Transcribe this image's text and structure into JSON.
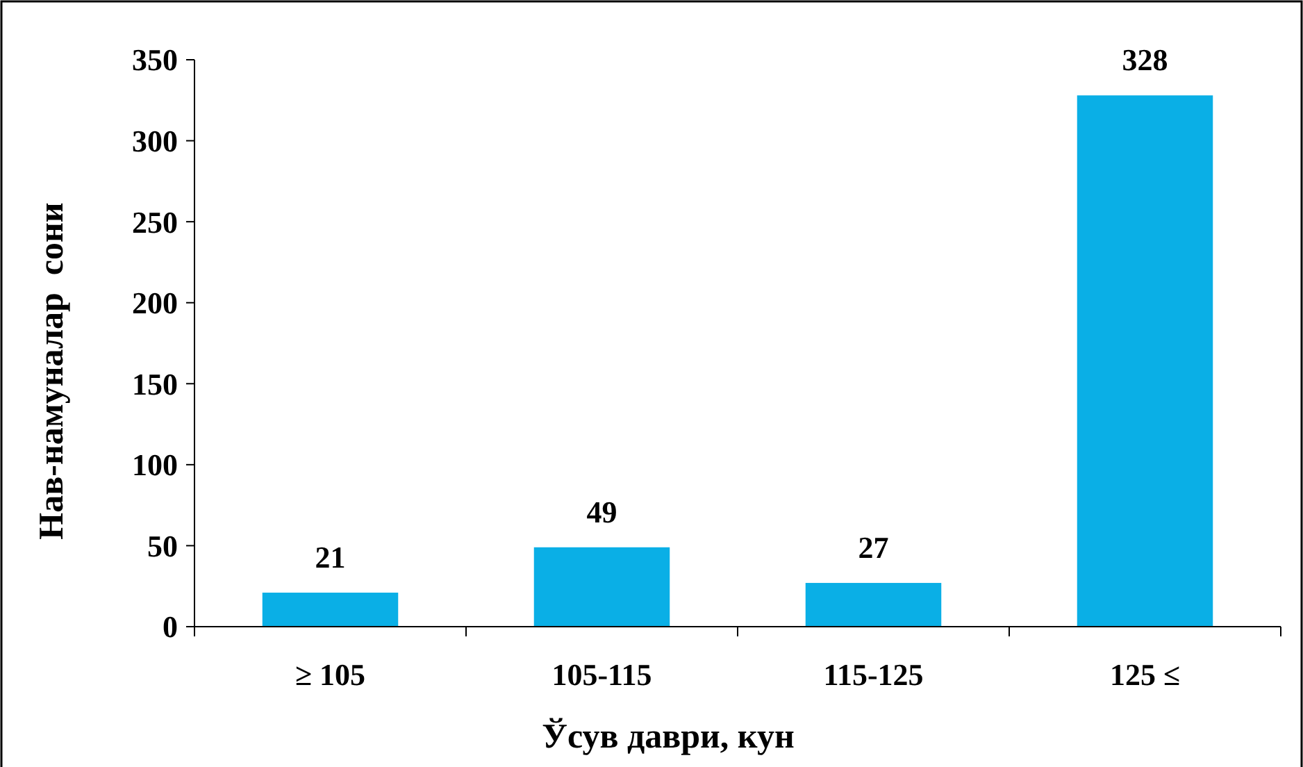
{
  "chart_data": {
    "type": "bar",
    "xlabel": "Ўсув даври, кун",
    "ylabel": "Нав-намуналар  сони",
    "categories": [
      "≥ 105",
      "105-115",
      "115-125",
      "125 ≤"
    ],
    "values": [
      21,
      49,
      27,
      328
    ],
    "color": "#0aafe6",
    "ylim": [
      0,
      350
    ],
    "yticks": [
      0,
      50,
      100,
      150,
      200,
      250,
      300,
      350
    ],
    "data_labels": true,
    "grid": false
  }
}
